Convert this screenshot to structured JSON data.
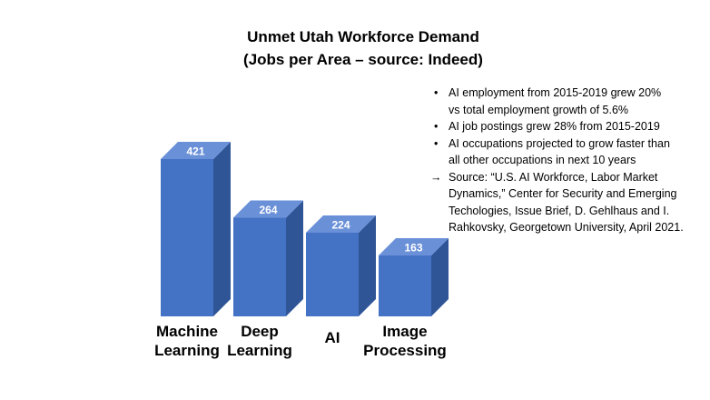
{
  "chart_data": {
    "type": "bar",
    "title": "Unmet Utah Workforce Demand",
    "subtitle": "(Jobs per Area – source: Indeed)",
    "categories": [
      [
        "Machine",
        "Learning"
      ],
      [
        "Deep",
        "Learning"
      ],
      [
        "AI"
      ],
      [
        "Image",
        "Processing"
      ]
    ],
    "values": [
      421,
      264,
      224,
      163
    ],
    "ylim": [
      0,
      450
    ],
    "grid": false,
    "style": "3d-column",
    "colors": {
      "front": "#4472C4",
      "top": "#6A90D8",
      "side": "#2F5597",
      "label": "#ffffff"
    }
  },
  "notes": [
    {
      "bullet": "•",
      "text": "AI employment from 2015-2019 grew 20%\n  vs total employment growth of 5.6%"
    },
    {
      "bullet": "•",
      "text": "AI job postings grew 28% from 2015-2019"
    },
    {
      "bullet": "•",
      "text": "AI occupations projected to grow faster than\nall other occupations in next 10 years"
    },
    {
      "bullet": "→",
      "text": "Source: “U.S. AI Workforce, Labor Market\nDynamics,” Center for Security and Emerging\nTechologies, Issue Brief, D. Gehlhaus and I.\nRahkovsky, Georgetown University, April 2021."
    }
  ]
}
